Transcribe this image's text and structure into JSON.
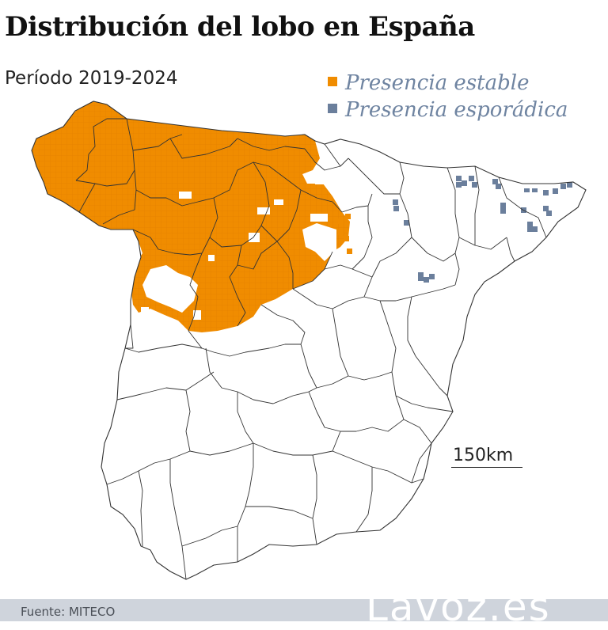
{
  "title": "Distribución del lobo en España",
  "subtitle": "Período 2019-2024",
  "legend": [
    {
      "label": "Presencia estable",
      "color": "#f08c00"
    },
    {
      "label": "Presencia esporádica",
      "color": "#6b7f9c"
    }
  ],
  "scale": {
    "label": "150km"
  },
  "source": "Fuente: MITECO",
  "brand": "Lavoz.es",
  "colors": {
    "border": "#333333",
    "land": "#ffffff",
    "footer": "#cfd4dc"
  }
}
